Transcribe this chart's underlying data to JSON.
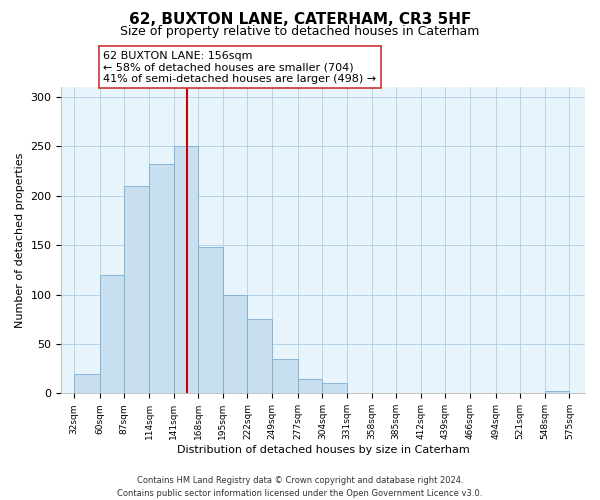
{
  "title": "62, BUXTON LANE, CATERHAM, CR3 5HF",
  "subtitle": "Size of property relative to detached houses in Caterham",
  "xlabel": "Distribution of detached houses by size in Caterham",
  "ylabel": "Number of detached properties",
  "bar_left_edges": [
    32,
    60,
    87,
    114,
    141,
    168,
    195,
    222,
    249,
    277,
    304,
    331,
    358,
    385,
    412,
    439,
    466,
    494,
    521,
    548
  ],
  "bar_heights": [
    20,
    120,
    210,
    232,
    250,
    148,
    100,
    75,
    35,
    15,
    10,
    0,
    0,
    0,
    0,
    0,
    0,
    0,
    0,
    2
  ],
  "bar_widths": [
    28,
    27,
    27,
    27,
    27,
    27,
    27,
    27,
    28,
    27,
    27,
    27,
    27,
    27,
    27,
    27,
    28,
    27,
    27,
    27
  ],
  "tick_labels": [
    "32sqm",
    "60sqm",
    "87sqm",
    "114sqm",
    "141sqm",
    "168sqm",
    "195sqm",
    "222sqm",
    "249sqm",
    "277sqm",
    "304sqm",
    "331sqm",
    "358sqm",
    "385sqm",
    "412sqm",
    "439sqm",
    "466sqm",
    "494sqm",
    "521sqm",
    "548sqm",
    "575sqm"
  ],
  "tick_positions": [
    32,
    60,
    87,
    114,
    141,
    168,
    195,
    222,
    249,
    277,
    304,
    331,
    358,
    385,
    412,
    439,
    466,
    494,
    521,
    548,
    575
  ],
  "bar_color": "#c8dff0",
  "bar_edge_color": "#7badd4",
  "vline_x": 156,
  "vline_color": "#cc0000",
  "ylim": [
    0,
    310
  ],
  "xlim": [
    18,
    592
  ],
  "yticks": [
    0,
    50,
    100,
    150,
    200,
    250,
    300
  ],
  "annotation_line1": "62 BUXTON LANE: 156sqm",
  "annotation_line2": "← 58% of detached houses are smaller (704)",
  "annotation_line3": "41% of semi-detached houses are larger (498) →",
  "footnote": "Contains HM Land Registry data © Crown copyright and database right 2024.\nContains public sector information licensed under the Open Government Licence v3.0.",
  "title_fontsize": 11,
  "subtitle_fontsize": 9,
  "annotation_fontsize": 8,
  "tick_fontsize": 6.5,
  "ylabel_fontsize": 8,
  "xlabel_fontsize": 8,
  "footnote_fontsize": 6,
  "bg_color": "#e8f4fb"
}
